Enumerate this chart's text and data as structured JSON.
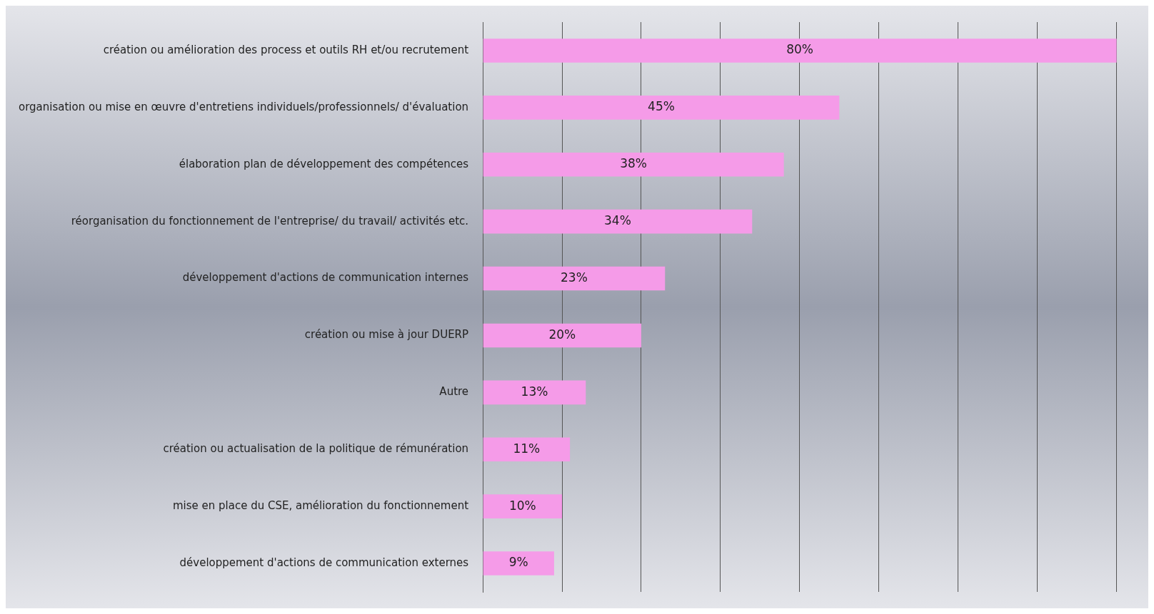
{
  "chart_data": {
    "type": "bar",
    "orientation": "horizontal",
    "categories": [
      "création ou amélioration des process et outils RH et/ou recrutement",
      "organisation ou mise en œuvre d'entretiens individuels/professionnels/ d'évaluation",
      "élaboration plan de développement des compétences",
      "réorganisation du fonctionnement de l'entreprise/ du travail/ activités etc.",
      "développement d'actions de communication internes",
      "création ou mise à jour DUERP",
      "Autre",
      "création ou actualisation de la politique de rémunération",
      "mise en place du CSE, amélioration du fonctionnement",
      "développement d'actions de communication externes"
    ],
    "values": [
      80,
      45,
      38,
      34,
      23,
      20,
      13,
      11,
      10,
      9
    ],
    "value_labels": [
      "80%",
      "45%",
      "38%",
      "34%",
      "23%",
      "20%",
      "13%",
      "11%",
      "10%",
      "9%"
    ],
    "color": "#f59be8",
    "xlim": [
      0,
      84
    ],
    "xticks": [
      {
        "value": 0,
        "label": null
      },
      {
        "value": 10,
        "label": null
      },
      {
        "value": 20,
        "label": null
      },
      {
        "value": 30,
        "label": null
      },
      {
        "value": 40,
        "label": null
      },
      {
        "value": 50,
        "label": null
      },
      {
        "value": 60,
        "label": null
      },
      {
        "value": 70,
        "label": null
      },
      {
        "value": 80,
        "label": null
      }
    ],
    "grid": "x",
    "tick_labels": "y",
    "legend": false
  }
}
